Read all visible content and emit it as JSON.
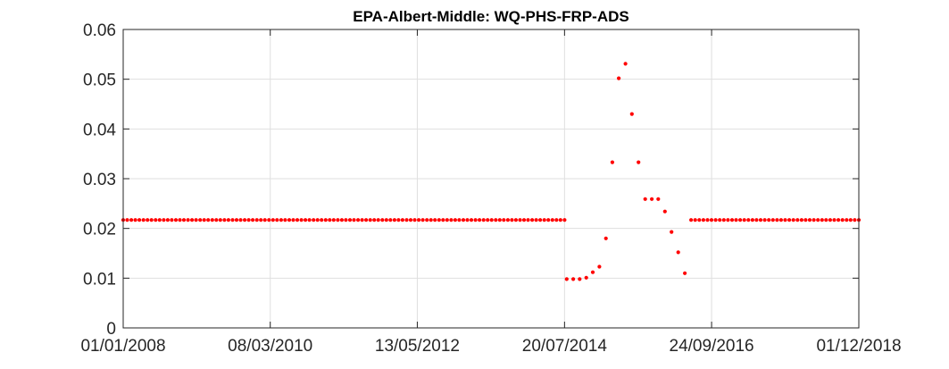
{
  "chart_data": {
    "type": "scatter",
    "title": "EPA-Albert-Middle: WQ-PHS-FRP-ADS",
    "xlabel": "",
    "ylabel": "",
    "x_axis": "date",
    "xlim": [
      "2008-01-01",
      "2018-12-01"
    ],
    "ylim": [
      0,
      0.06
    ],
    "x_ticks": [
      "01/01/2008",
      "08/03/2010",
      "13/05/2012",
      "20/07/2014",
      "24/09/2016",
      "01/12/2018"
    ],
    "x_tick_dates": [
      "2008-01-01",
      "2010-03-08",
      "2012-05-13",
      "2014-07-20",
      "2016-09-24",
      "2018-12-01"
    ],
    "y_ticks": [
      "0",
      "0.01",
      "0.02",
      "0.03",
      "0.04",
      "0.05",
      "0.06"
    ],
    "y_tick_values": [
      0,
      0.01,
      0.02,
      0.03,
      0.04,
      0.05,
      0.06
    ],
    "grid": true,
    "marker_color": "#ff0000",
    "axis_color": "#262626",
    "grid_color": "#dfdfdf",
    "series": [
      {
        "segments": [
          {
            "start": "2008-01-01",
            "end": "2014-07-20",
            "count": 110,
            "value": 0.0217
          },
          {
            "points": [
              [
                "2014-08-01",
                0.0098
              ],
              [
                "2014-09-05",
                0.0098
              ],
              [
                "2014-10-10",
                0.0098
              ],
              [
                "2014-11-15",
                0.0101
              ],
              [
                "2014-12-20",
                0.0112
              ],
              [
                "2015-01-25",
                0.0123
              ],
              [
                "2015-03-01",
                0.018
              ],
              [
                "2015-04-05",
                0.0333
              ],
              [
                "2015-05-10",
                0.0502
              ],
              [
                "2015-06-15",
                0.0531
              ],
              [
                "2015-07-20",
                0.043
              ],
              [
                "2015-08-25",
                0.0333
              ],
              [
                "2015-09-30",
                0.0259
              ],
              [
                "2015-11-05",
                0.0259
              ],
              [
                "2015-12-10",
                0.0259
              ],
              [
                "2016-01-15",
                0.0234
              ],
              [
                "2016-02-20",
                0.0193
              ],
              [
                "2016-03-27",
                0.0152
              ],
              [
                "2016-05-02",
                0.011
              ]
            ]
          },
          {
            "start": "2016-06-05",
            "end": "2018-12-01",
            "count": 42,
            "value": 0.0217
          }
        ]
      }
    ]
  }
}
